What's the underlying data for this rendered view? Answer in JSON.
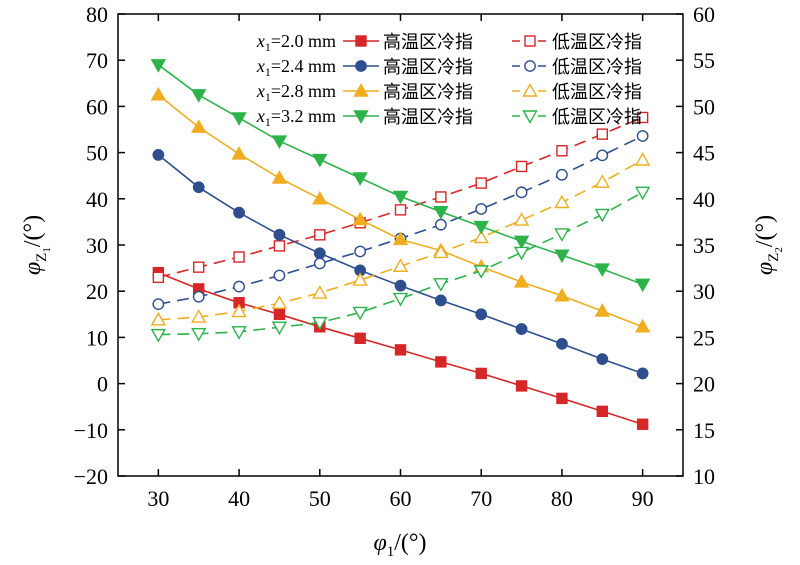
{
  "chart_data": {
    "type": "line",
    "x": [
      30,
      35,
      40,
      45,
      50,
      55,
      60,
      65,
      70,
      75,
      80,
      85,
      90
    ],
    "xlim": [
      25,
      95
    ],
    "xticks": [
      30,
      40,
      50,
      60,
      70,
      80,
      90
    ],
    "ylim_left": [
      -20,
      80
    ],
    "yticks_left": [
      -20,
      -10,
      0,
      10,
      20,
      30,
      40,
      50,
      60,
      70,
      80
    ],
    "ylim_right": [
      10,
      60
    ],
    "yticks_right": [
      10,
      15,
      20,
      25,
      30,
      35,
      40,
      45,
      50,
      55,
      60
    ],
    "xlabel": {
      "main": "φ",
      "sub": "1",
      "unit": "/(°)"
    },
    "ylabel_left": {
      "main": "φ",
      "sub": "Z",
      "subsub": "1",
      "unit": "/(°)"
    },
    "ylabel_right": {
      "main": "φ",
      "sub": "Z",
      "subsub": "2",
      "unit": "/(°)"
    },
    "legend_position": "top",
    "series": [
      {
        "group": "x1=2.0 mm",
        "name": "高温区冷指",
        "axis": "left",
        "color": "#d62728",
        "marker": "square",
        "filled": true,
        "dashed": false,
        "values": [
          24,
          20.5,
          17.5,
          15,
          12.3,
          9.8,
          7.3,
          4.7,
          2.2,
          -0.5,
          -3.2,
          -6,
          -8.8
        ]
      },
      {
        "group": "x1=2.0 mm",
        "name": "低温区冷指",
        "axis": "right",
        "color": "#d62728",
        "marker": "square",
        "filled": false,
        "dashed": true,
        "values": [
          31.5,
          32.6,
          33.7,
          34.9,
          36.1,
          37.4,
          38.8,
          40.2,
          41.7,
          43.5,
          45.2,
          47,
          48.8
        ]
      },
      {
        "group": "x1=2.4 mm",
        "name": "高温区冷指",
        "axis": "left",
        "color": "#2e4e8f",
        "marker": "circle",
        "filled": true,
        "dashed": false,
        "values": [
          49.5,
          42.5,
          37,
          32.2,
          28.2,
          24.5,
          21.2,
          18,
          15,
          11.8,
          8.6,
          5.3,
          2.2
        ]
      },
      {
        "group": "x1=2.4 mm",
        "name": "低温区冷指",
        "axis": "right",
        "color": "#2e4e8f",
        "marker": "circle",
        "filled": false,
        "dashed": true,
        "values": [
          28.6,
          29.4,
          30.5,
          31.7,
          33,
          34.3,
          35.7,
          37.2,
          38.9,
          40.7,
          42.6,
          44.7,
          46.8
        ]
      },
      {
        "group": "x1=2.8 mm",
        "name": "高温区冷指",
        "axis": "left",
        "color": "#f0ad1f",
        "marker": "triangle-up",
        "filled": true,
        "dashed": false,
        "values": [
          62.5,
          55.5,
          49.7,
          44.5,
          40,
          35.5,
          31.2,
          28.8,
          25.3,
          22,
          19,
          15.7,
          12.3
        ]
      },
      {
        "group": "x1=2.8 mm",
        "name": "低温区冷指",
        "axis": "right",
        "color": "#f0ad1f",
        "marker": "triangle-up",
        "filled": false,
        "dashed": true,
        "values": [
          26.9,
          27.2,
          27.8,
          28.7,
          29.8,
          31.2,
          32.7,
          34.2,
          35.8,
          37.7,
          39.6,
          41.8,
          44.2
        ]
      },
      {
        "group": "x1=3.2 mm",
        "name": "高温区冷指",
        "axis": "left",
        "color": "#2db34a",
        "marker": "triangle-down",
        "filled": true,
        "dashed": false,
        "values": [
          69,
          62.5,
          57.5,
          52.5,
          48.5,
          44.5,
          40.5,
          37.2,
          34,
          30.8,
          27.8,
          24.8,
          21.5
        ]
      },
      {
        "group": "x1=3.2 mm",
        "name": "低温区冷指",
        "axis": "right",
        "color": "#2db34a",
        "marker": "triangle-down",
        "filled": false,
        "dashed": true,
        "values": [
          25.3,
          25.4,
          25.6,
          26.1,
          26.6,
          27.7,
          29.2,
          30.8,
          32.2,
          34.2,
          36.2,
          38.3,
          40.7
        ]
      }
    ]
  }
}
